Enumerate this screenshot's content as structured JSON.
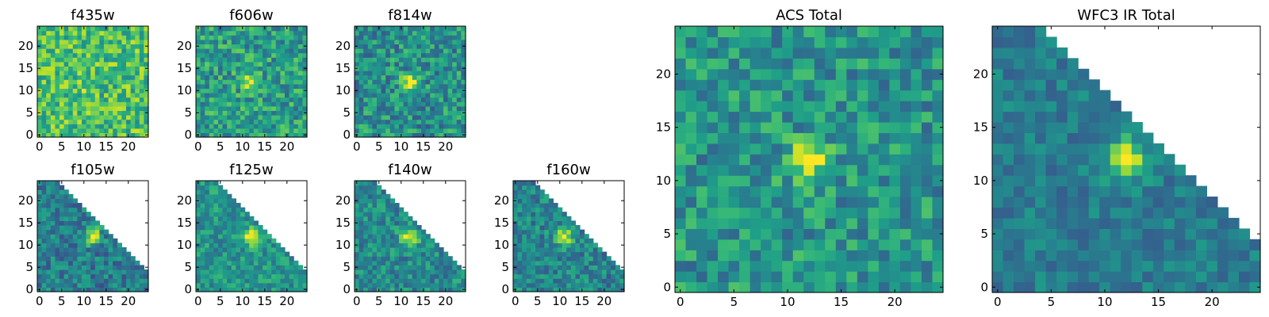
{
  "chart_data": [
    {
      "type": "heatmap",
      "title": "f435w",
      "xlim": [
        0,
        24
      ],
      "ylim": [
        0,
        24
      ],
      "xticks": [
        0,
        5,
        10,
        15,
        20
      ],
      "yticks": [
        0,
        5,
        10,
        15,
        20
      ],
      "source_center": [
        11,
        11
      ],
      "source_peak": 0.82,
      "background_level": 0.7,
      "noise": 0.22,
      "masked": false
    },
    {
      "type": "heatmap",
      "title": "f606w",
      "xlim": [
        0,
        24
      ],
      "ylim": [
        0,
        24
      ],
      "xticks": [
        0,
        5,
        10,
        15,
        20
      ],
      "yticks": [
        0,
        5,
        10,
        15,
        20
      ],
      "source_center": [
        12,
        12
      ],
      "source_peak": 0.98,
      "background_level": 0.55,
      "noise": 0.22,
      "masked": false
    },
    {
      "type": "heatmap",
      "title": "f814w",
      "xlim": [
        0,
        24
      ],
      "ylim": [
        0,
        24
      ],
      "xticks": [
        0,
        5,
        10,
        15,
        20
      ],
      "yticks": [
        0,
        5,
        10,
        15,
        20
      ],
      "source_center": [
        12,
        12
      ],
      "source_peak": 1.0,
      "background_level": 0.5,
      "noise": 0.22,
      "masked": false
    },
    {
      "type": "heatmap",
      "title": "f105w",
      "xlim": [
        0,
        24
      ],
      "ylim": [
        0,
        24
      ],
      "xticks": [
        0,
        5,
        10,
        15,
        20
      ],
      "yticks": [
        0,
        5,
        10,
        15,
        20
      ],
      "source_center": [
        12,
        12
      ],
      "source_peak": 1.0,
      "background_level": 0.42,
      "noise": 0.18,
      "masked": true
    },
    {
      "type": "heatmap",
      "title": "f125w",
      "xlim": [
        0,
        24
      ],
      "ylim": [
        0,
        24
      ],
      "xticks": [
        0,
        5,
        10,
        15,
        20
      ],
      "yticks": [
        0,
        5,
        10,
        15,
        20
      ],
      "source_center": [
        12,
        12
      ],
      "source_peak": 1.0,
      "background_level": 0.52,
      "noise": 0.16,
      "masked": true
    },
    {
      "type": "heatmap",
      "title": "f140w",
      "xlim": [
        0,
        24
      ],
      "ylim": [
        0,
        24
      ],
      "xticks": [
        0,
        5,
        10,
        15,
        20
      ],
      "yticks": [
        0,
        5,
        10,
        15,
        20
      ],
      "source_center": [
        12,
        12
      ],
      "source_peak": 1.0,
      "background_level": 0.48,
      "noise": 0.18,
      "masked": true
    },
    {
      "type": "heatmap",
      "title": "f160w",
      "xlim": [
        0,
        24
      ],
      "ylim": [
        0,
        24
      ],
      "xticks": [
        0,
        5,
        10,
        15,
        20
      ],
      "yticks": [
        0,
        5,
        10,
        15,
        20
      ],
      "source_center": [
        11,
        12
      ],
      "source_peak": 1.0,
      "background_level": 0.45,
      "noise": 0.18,
      "masked": true
    },
    {
      "type": "heatmap",
      "title": "ACS Total",
      "xlim": [
        0,
        24
      ],
      "ylim": [
        0,
        24
      ],
      "xticks": [
        0,
        5,
        10,
        15,
        20
      ],
      "yticks": [
        0,
        5,
        10,
        15,
        20
      ],
      "source_center": [
        12,
        12
      ],
      "source_peak": 1.0,
      "background_level": 0.52,
      "noise": 0.2,
      "masked": false
    },
    {
      "type": "heatmap",
      "title": "WFC3 IR Total",
      "xlim": [
        0,
        24
      ],
      "ylim": [
        0,
        24
      ],
      "xticks": [
        0,
        5,
        10,
        15,
        20
      ],
      "yticks": [
        0,
        5,
        10,
        15,
        20
      ],
      "source_center": [
        12,
        12
      ],
      "source_peak": 1.0,
      "background_level": 0.42,
      "noise": 0.12,
      "masked": true
    }
  ],
  "colormap": "viridis"
}
